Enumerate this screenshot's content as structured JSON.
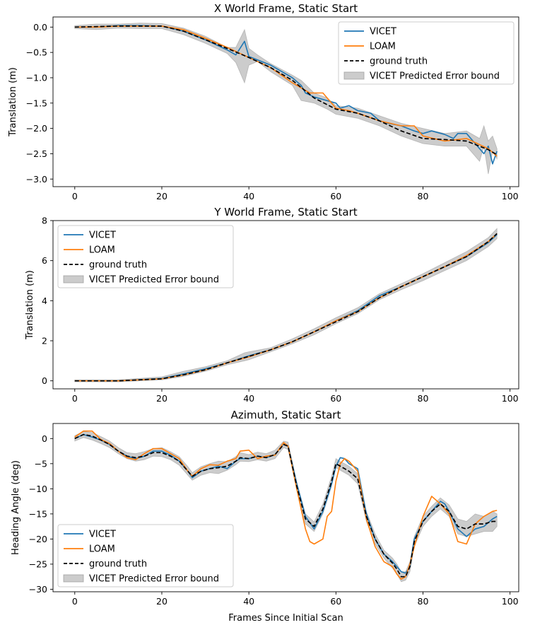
{
  "chart_data": [
    {
      "type": "line",
      "title": "X World Frame, Static Start",
      "xlabel": "",
      "ylabel": "Translation (m)",
      "xlim": [
        -5,
        102
      ],
      "ylim": [
        -3.15,
        0.2
      ],
      "xticks": [
        0,
        20,
        40,
        60,
        80,
        100
      ],
      "yticks": [
        0.0,
        -0.5,
        -1.0,
        -1.5,
        -2.0,
        -2.5,
        -3.0
      ],
      "ytick_labels": [
        "0.0",
        "−0.5",
        "−1.0",
        "−1.5",
        "−2.0",
        "−2.5",
        "−3.0"
      ],
      "legend_position": "top-right",
      "grid": false,
      "series": [
        {
          "name": "VICET",
          "color": "#1f77b4",
          "style": "solid",
          "x": [
            0,
            5,
            10,
            15,
            20,
            25,
            30,
            35,
            37,
            39,
            40,
            45,
            50,
            52,
            53,
            55,
            60,
            61,
            63,
            65,
            68,
            70,
            72,
            75,
            78,
            80,
            82,
            85,
            87,
            88,
            90,
            92,
            94,
            95,
            96,
            97
          ],
          "y": [
            0.0,
            0.0,
            0.03,
            0.03,
            0.02,
            -0.08,
            -0.25,
            -0.45,
            -0.55,
            -0.28,
            -0.58,
            -0.75,
            -1.0,
            -1.15,
            -1.3,
            -1.38,
            -1.5,
            -1.6,
            -1.55,
            -1.65,
            -1.7,
            -1.85,
            -1.9,
            -1.95,
            -2.05,
            -2.1,
            -2.05,
            -2.12,
            -2.2,
            -2.1,
            -2.1,
            -2.3,
            -2.5,
            -2.35,
            -2.7,
            -2.45
          ]
        },
        {
          "name": "LOAM",
          "color": "#ff7f0e",
          "style": "solid",
          "x": [
            0,
            5,
            10,
            15,
            20,
            25,
            30,
            35,
            40,
            45,
            50,
            54,
            57,
            60,
            63,
            65,
            70,
            75,
            78,
            80,
            85,
            90,
            95,
            97
          ],
          "y": [
            0.0,
            0.0,
            0.02,
            0.02,
            0.02,
            -0.05,
            -0.22,
            -0.4,
            -0.6,
            -0.8,
            -1.1,
            -1.3,
            -1.3,
            -1.6,
            -1.65,
            -1.7,
            -1.85,
            -1.95,
            -1.95,
            -2.15,
            -2.25,
            -2.2,
            -2.4,
            -2.55
          ]
        },
        {
          "name": "ground truth",
          "color": "#000000",
          "style": "dashed",
          "x": [
            0,
            10,
            20,
            25,
            30,
            35,
            40,
            45,
            50,
            55,
            60,
            65,
            70,
            75,
            80,
            85,
            90,
            95,
            97
          ],
          "y": [
            0.0,
            0.02,
            0.02,
            -0.08,
            -0.25,
            -0.42,
            -0.6,
            -0.8,
            -1.05,
            -1.4,
            -1.62,
            -1.7,
            -1.85,
            -2.05,
            -2.2,
            -2.22,
            -2.25,
            -2.42,
            -2.52
          ]
        }
      ],
      "band": {
        "name": "VICET Predicted Error bound",
        "color": "#999999",
        "x": [
          0,
          5,
          10,
          15,
          20,
          25,
          30,
          35,
          37,
          39,
          40,
          42,
          45,
          50,
          52,
          55,
          58,
          60,
          65,
          70,
          75,
          80,
          85,
          90,
          93,
          94,
          95,
          96,
          97
        ],
        "lower": [
          -0.03,
          -0.05,
          -0.02,
          -0.03,
          -0.03,
          -0.15,
          -0.32,
          -0.52,
          -0.7,
          -1.1,
          -0.75,
          -0.68,
          -0.88,
          -1.15,
          -1.45,
          -1.5,
          -1.62,
          -1.72,
          -1.8,
          -1.95,
          -2.15,
          -2.3,
          -2.35,
          -2.35,
          -2.65,
          -2.35,
          -2.9,
          -2.45,
          -2.6
        ],
        "upper": [
          0.03,
          0.06,
          0.06,
          0.08,
          0.07,
          -0.02,
          -0.18,
          -0.4,
          -0.4,
          -0.05,
          -0.42,
          -0.55,
          -0.72,
          -0.95,
          -1.05,
          -1.3,
          -1.4,
          -1.55,
          -1.6,
          -1.75,
          -1.9,
          -2.0,
          -2.1,
          -2.05,
          -2.2,
          -1.95,
          -2.25,
          -2.15,
          -2.4
        ]
      }
    },
    {
      "type": "line",
      "title": "Y World Frame, Static Start",
      "xlabel": "",
      "ylabel": "Translation (m)",
      "xlim": [
        -5,
        102
      ],
      "ylim": [
        -0.4,
        8.0
      ],
      "xticks": [
        0,
        20,
        40,
        60,
        80,
        100
      ],
      "yticks": [
        0,
        2,
        4,
        6,
        8
      ],
      "ytick_labels": [
        "0",
        "2",
        "4",
        "6",
        "8"
      ],
      "legend_position": "top-left",
      "grid": false,
      "series": [
        {
          "name": "VICET",
          "color": "#1f77b4",
          "style": "solid",
          "x": [
            0,
            10,
            20,
            25,
            30,
            35,
            40,
            45,
            50,
            55,
            60,
            65,
            70,
            75,
            80,
            85,
            90,
            95,
            97
          ],
          "y": [
            0.0,
            0.0,
            0.12,
            0.35,
            0.6,
            0.9,
            1.25,
            1.55,
            1.95,
            2.45,
            3.0,
            3.5,
            4.25,
            4.7,
            5.2,
            5.7,
            6.2,
            6.9,
            7.3
          ]
        },
        {
          "name": "LOAM",
          "color": "#ff7f0e",
          "style": "solid",
          "x": [
            0,
            10,
            20,
            25,
            30,
            35,
            40,
            45,
            50,
            55,
            60,
            65,
            70,
            75,
            80,
            85,
            90,
            95,
            97
          ],
          "y": [
            0.0,
            0.0,
            0.1,
            0.3,
            0.55,
            0.9,
            1.2,
            1.55,
            1.95,
            2.45,
            3.0,
            3.45,
            4.15,
            4.7,
            5.2,
            5.7,
            6.25,
            6.95,
            7.35
          ]
        },
        {
          "name": "ground truth",
          "color": "#000000",
          "style": "dashed",
          "x": [
            0,
            10,
            20,
            25,
            30,
            35,
            40,
            45,
            50,
            55,
            60,
            65,
            70,
            75,
            80,
            85,
            90,
            95,
            97
          ],
          "y": [
            0.0,
            0.0,
            0.1,
            0.3,
            0.55,
            0.9,
            1.22,
            1.55,
            1.95,
            2.45,
            2.95,
            3.45,
            4.15,
            4.7,
            5.2,
            5.7,
            6.2,
            6.95,
            7.35
          ]
        }
      ],
      "band": {
        "name": "VICET Predicted Error bound",
        "color": "#999999",
        "x": [
          0,
          10,
          20,
          25,
          30,
          35,
          39,
          40,
          45,
          50,
          55,
          60,
          65,
          70,
          75,
          80,
          85,
          90,
          95,
          97
        ],
        "lower": [
          -0.05,
          -0.05,
          0.05,
          0.22,
          0.48,
          0.8,
          1.0,
          1.05,
          1.45,
          1.85,
          2.3,
          2.85,
          3.35,
          4.05,
          4.55,
          5.0,
          5.5,
          6.0,
          6.7,
          7.1
        ],
        "upper": [
          0.05,
          0.05,
          0.2,
          0.48,
          0.7,
          1.0,
          1.4,
          1.45,
          1.65,
          2.1,
          2.6,
          3.15,
          3.65,
          4.35,
          4.85,
          5.35,
          5.9,
          6.45,
          7.15,
          7.6
        ]
      }
    },
    {
      "type": "line",
      "title": "Azimuth, Static Start",
      "xlabel": "Frames Since Initial Scan",
      "ylabel": "Heading Angle (deg)",
      "xlim": [
        -5,
        102
      ],
      "ylim": [
        -30.5,
        3.0
      ],
      "xticks": [
        0,
        20,
        40,
        60,
        80,
        100
      ],
      "yticks": [
        0,
        -5,
        -10,
        -15,
        -20,
        -25,
        -30
      ],
      "ytick_labels": [
        "0",
        "−5",
        "−10",
        "−15",
        "−20",
        "−25",
        "−30"
      ],
      "legend_position": "bottom-left",
      "grid": false,
      "series": [
        {
          "name": "VICET",
          "color": "#1f77b4",
          "style": "solid",
          "x": [
            0,
            2,
            4,
            6,
            8,
            10,
            12,
            14,
            16,
            18,
            20,
            22,
            24,
            26,
            27,
            29,
            31,
            33,
            35,
            37,
            38,
            40,
            42,
            44,
            46,
            48,
            49,
            51,
            53,
            55,
            57,
            59,
            60,
            61,
            62,
            63,
            65,
            67,
            69,
            71,
            73,
            74,
            75,
            76,
            77,
            78,
            80,
            82,
            84,
            85,
            86,
            88,
            90,
            92,
            94,
            96,
            97
          ],
          "y": [
            0,
            0.8,
            0.3,
            -0.3,
            -1.2,
            -2.5,
            -3.5,
            -4.0,
            -3.5,
            -2.5,
            -2.5,
            -3.3,
            -4.5,
            -6.5,
            -7.8,
            -6.5,
            -6.0,
            -5.5,
            -6.0,
            -4.5,
            -4.0,
            -4.0,
            -3.5,
            -3.8,
            -3.2,
            -1.0,
            -1.5,
            -9.0,
            -15.5,
            -18.0,
            -14.5,
            -9.0,
            -5.5,
            -3.8,
            -4.0,
            -5.0,
            -6.0,
            -15.0,
            -20.0,
            -23.0,
            -24.5,
            -25.5,
            -26.5,
            -26.8,
            -25.5,
            -20.0,
            -16.5,
            -14.5,
            -12.5,
            -13.0,
            -14.5,
            -18.0,
            -19.5,
            -18.0,
            -17.5,
            -16.0,
            -15.5
          ]
        },
        {
          "name": "LOAM",
          "color": "#ff7f0e",
          "style": "solid",
          "x": [
            0,
            2,
            4,
            6,
            8,
            10,
            12,
            14,
            16,
            18,
            20,
            22,
            24,
            26,
            27,
            29,
            31,
            33,
            35,
            37,
            38,
            40,
            42,
            44,
            46,
            48,
            49,
            51,
            53,
            54,
            55,
            57,
            58,
            59,
            60,
            61,
            62,
            63,
            65,
            67,
            69,
            71,
            73,
            74,
            75,
            76,
            77,
            78,
            80,
            82,
            84,
            86,
            88,
            90,
            92,
            94,
            96,
            97
          ],
          "y": [
            0.3,
            1.5,
            1.5,
            -0.2,
            -1.0,
            -2.5,
            -3.8,
            -4.2,
            -3.0,
            -2.0,
            -2.0,
            -3.0,
            -4.0,
            -6.5,
            -7.5,
            -6.0,
            -5.2,
            -5.3,
            -4.5,
            -4.0,
            -2.5,
            -2.3,
            -4.0,
            -3.5,
            -3.3,
            -0.8,
            -1.5,
            -10.0,
            -18.0,
            -20.5,
            -21.0,
            -20.0,
            -15.5,
            -14.5,
            -8.5,
            -5.0,
            -4.0,
            -4.5,
            -6.5,
            -16.0,
            -21.5,
            -24.5,
            -25.5,
            -27.0,
            -28.0,
            -27.5,
            -25.0,
            -21.5,
            -15.5,
            -11.5,
            -13.0,
            -15.0,
            -20.5,
            -21.0,
            -17.0,
            -15.5,
            -14.5,
            -14.3
          ]
        },
        {
          "name": "ground truth",
          "color": "#000000",
          "style": "dashed",
          "x": [
            0,
            2,
            4,
            6,
            8,
            10,
            12,
            14,
            16,
            18,
            20,
            22,
            24,
            26,
            27,
            29,
            31,
            33,
            35,
            37,
            38,
            40,
            42,
            44,
            46,
            48,
            49,
            51,
            53,
            55,
            57,
            59,
            60,
            61,
            62,
            63,
            65,
            67,
            69,
            71,
            73,
            74,
            75,
            76,
            77,
            78,
            80,
            82,
            84,
            86,
            88,
            90,
            92,
            94,
            96,
            97
          ],
          "y": [
            0,
            0.8,
            0.5,
            -0.3,
            -1.2,
            -2.5,
            -3.5,
            -3.8,
            -3.5,
            -2.8,
            -2.8,
            -3.5,
            -4.5,
            -6.5,
            -7.5,
            -6.5,
            -6.0,
            -5.8,
            -5.5,
            -4.5,
            -3.8,
            -4.0,
            -3.5,
            -3.8,
            -3.2,
            -1.2,
            -1.5,
            -9.5,
            -16.0,
            -17.5,
            -14.0,
            -8.5,
            -5.0,
            -5.5,
            -6.0,
            -6.5,
            -8.0,
            -15.5,
            -20.0,
            -23.0,
            -24.8,
            -26.0,
            -27.5,
            -27.5,
            -25.5,
            -20.5,
            -16.5,
            -14.5,
            -13.0,
            -14.5,
            -17.5,
            -18.0,
            -17.0,
            -17.0,
            -16.5,
            -16.5
          ]
        }
      ],
      "band": {
        "name": "VICET Predicted Error bound",
        "color": "#999999",
        "x": [
          0,
          2,
          4,
          6,
          8,
          10,
          12,
          14,
          16,
          18,
          20,
          22,
          24,
          26,
          27,
          29,
          31,
          33,
          35,
          37,
          38,
          40,
          42,
          44,
          46,
          48,
          49,
          51,
          53,
          55,
          57,
          59,
          60,
          61,
          62,
          63,
          65,
          67,
          69,
          71,
          73,
          74,
          75,
          76,
          77,
          78,
          80,
          82,
          84,
          86,
          88,
          90,
          92,
          94,
          96,
          97
        ],
        "lower": [
          -0.5,
          0.2,
          -0.3,
          -1.0,
          -1.8,
          -3.0,
          -4.0,
          -4.5,
          -4.2,
          -3.5,
          -3.6,
          -4.2,
          -5.3,
          -7.3,
          -8.3,
          -7.3,
          -6.8,
          -7.0,
          -6.3,
          -5.2,
          -4.5,
          -4.6,
          -4.2,
          -4.5,
          -4.0,
          -1.8,
          -2.2,
          -10.3,
          -17.0,
          -18.5,
          -15.0,
          -9.5,
          -5.8,
          -6.3,
          -6.8,
          -7.3,
          -9.0,
          -16.5,
          -21.0,
          -23.8,
          -25.8,
          -27.0,
          -28.5,
          -28.2,
          -26.5,
          -21.5,
          -17.5,
          -15.5,
          -14.0,
          -15.5,
          -19.0,
          -19.5,
          -19.0,
          -18.5,
          -18.5,
          -17.5
        ],
        "upper": [
          0.6,
          1.4,
          1.2,
          0.4,
          -0.5,
          -1.8,
          -2.8,
          -3.0,
          -2.6,
          -2.0,
          -1.8,
          -2.6,
          -3.6,
          -5.6,
          -6.8,
          -5.6,
          -5.0,
          -4.5,
          -4.6,
          -3.6,
          -2.8,
          -3.2,
          -2.7,
          -3.0,
          -2.3,
          -0.5,
          -0.7,
          -8.6,
          -15.0,
          -16.6,
          -13.0,
          -7.5,
          -4.0,
          -4.6,
          -5.0,
          -5.5,
          -7.0,
          -14.5,
          -19.0,
          -22.2,
          -23.8,
          -25.0,
          -26.5,
          -26.5,
          -24.5,
          -19.5,
          -15.5,
          -13.5,
          -11.8,
          -13.2,
          -16.0,
          -16.5,
          -15.0,
          -15.5,
          -14.5,
          -15.0
        ]
      }
    }
  ]
}
